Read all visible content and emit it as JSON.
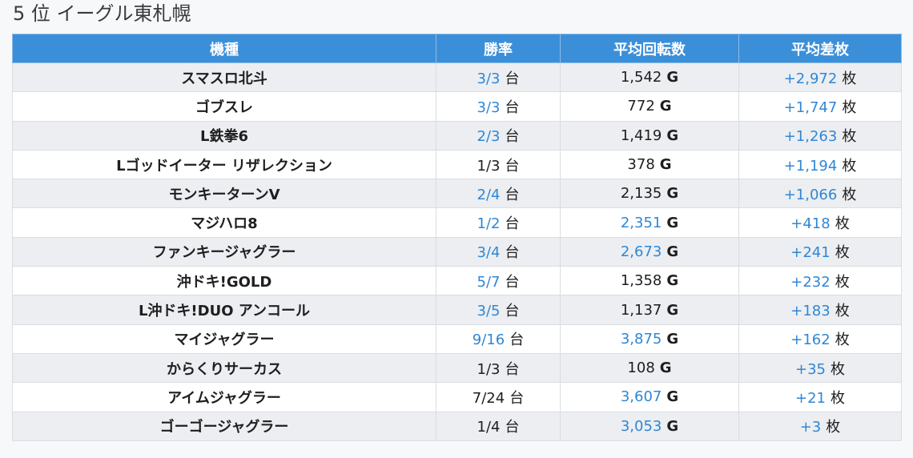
{
  "title": "5 位 イーグル東札幌",
  "colors": {
    "header_bg": "#3b8fd9",
    "highlight": "#2f87d6",
    "row_alt": "#eceef1"
  },
  "table": {
    "headers": [
      "機種",
      "勝率",
      "平均回転数",
      "平均差枚"
    ],
    "units": {
      "win": "台",
      "spins": "G",
      "diff": "枚"
    },
    "rows": [
      {
        "name": "スマスロ北斗",
        "win": "3/3",
        "win_hl": true,
        "spins": "1,542",
        "spins_hl": false,
        "diff": "+2,972",
        "diff_hl": true
      },
      {
        "name": "ゴブスレ",
        "win": "3/3",
        "win_hl": true,
        "spins": "772",
        "spins_hl": false,
        "diff": "+1,747",
        "diff_hl": true
      },
      {
        "name": "L鉄拳6",
        "win": "2/3",
        "win_hl": true,
        "spins": "1,419",
        "spins_hl": false,
        "diff": "+1,263",
        "diff_hl": true
      },
      {
        "name": "Lゴッドイーター リザレクション",
        "win": "1/3",
        "win_hl": false,
        "spins": "378",
        "spins_hl": false,
        "diff": "+1,194",
        "diff_hl": true
      },
      {
        "name": "モンキーターンV",
        "win": "2/4",
        "win_hl": true,
        "spins": "2,135",
        "spins_hl": false,
        "diff": "+1,066",
        "diff_hl": true
      },
      {
        "name": "マジハロ8",
        "win": "1/2",
        "win_hl": true,
        "spins": "2,351",
        "spins_hl": true,
        "diff": "+418",
        "diff_hl": true
      },
      {
        "name": "ファンキージャグラー",
        "win": "3/4",
        "win_hl": true,
        "spins": "2,673",
        "spins_hl": true,
        "diff": "+241",
        "diff_hl": true
      },
      {
        "name": "沖ドキ!GOLD",
        "win": "5/7",
        "win_hl": true,
        "spins": "1,358",
        "spins_hl": false,
        "diff": "+232",
        "diff_hl": true
      },
      {
        "name": "L沖ドキ!DUO アンコール",
        "win": "3/5",
        "win_hl": true,
        "spins": "1,137",
        "spins_hl": false,
        "diff": "+183",
        "diff_hl": true
      },
      {
        "name": "マイジャグラー",
        "win": "9/16",
        "win_hl": true,
        "spins": "3,875",
        "spins_hl": true,
        "diff": "+162",
        "diff_hl": true
      },
      {
        "name": "からくりサーカス",
        "win": "1/3",
        "win_hl": false,
        "spins": "108",
        "spins_hl": false,
        "diff": "+35",
        "diff_hl": true
      },
      {
        "name": "アイムジャグラー",
        "win": "7/24",
        "win_hl": false,
        "spins": "3,607",
        "spins_hl": true,
        "diff": "+21",
        "diff_hl": true
      },
      {
        "name": "ゴーゴージャグラー",
        "win": "1/4",
        "win_hl": false,
        "spins": "3,053",
        "spins_hl": true,
        "diff": "+3",
        "diff_hl": true
      }
    ]
  }
}
